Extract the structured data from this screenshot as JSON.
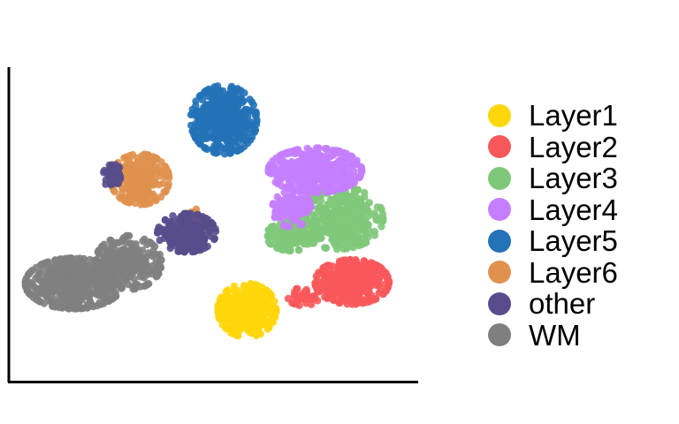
{
  "chart_data": {
    "type": "scatter",
    "title": "",
    "xlabel": "",
    "ylabel": "",
    "axes": "left and bottom lines only, no ticks or tick labels",
    "grid": false,
    "legend_position": "right",
    "series": [
      {
        "name": "Layer1",
        "color": "#FFD60A",
        "clusters": [
          {
            "cx": 0.585,
            "cy": 0.21,
            "rx": 0.075,
            "ry": 0.09,
            "n": 360
          }
        ]
      },
      {
        "name": "Layer2",
        "color": "#F8585A",
        "clusters": [
          {
            "cx": 0.855,
            "cy": 0.305,
            "rx": 0.095,
            "ry": 0.075,
            "n": 380
          },
          {
            "cx": 0.73,
            "cy": 0.255,
            "rx": 0.04,
            "ry": 0.03,
            "n": 40
          }
        ]
      },
      {
        "name": "Layer3",
        "color": "#7FC87A",
        "clusters": [
          {
            "cx": 0.82,
            "cy": 0.52,
            "rx": 0.115,
            "ry": 0.105,
            "n": 420
          },
          {
            "cx": 0.7,
            "cy": 0.46,
            "rx": 0.065,
            "ry": 0.05,
            "n": 160
          }
        ]
      },
      {
        "name": "Layer4",
        "color": "#C47EFF",
        "clusters": [
          {
            "cx": 0.76,
            "cy": 0.68,
            "rx": 0.12,
            "ry": 0.075,
            "n": 460
          },
          {
            "cx": 0.7,
            "cy": 0.55,
            "rx": 0.05,
            "ry": 0.06,
            "n": 120
          }
        ]
      },
      {
        "name": "Layer5",
        "color": "#2472B8",
        "clusters": [
          {
            "cx": 0.525,
            "cy": 0.85,
            "rx": 0.085,
            "ry": 0.115,
            "n": 440
          }
        ]
      },
      {
        "name": "Layer6",
        "color": "#E0914E",
        "clusters": [
          {
            "cx": 0.31,
            "cy": 0.65,
            "rx": 0.075,
            "ry": 0.085,
            "n": 260
          },
          {
            "cx": 0.45,
            "cy": 0.5,
            "rx": 0.04,
            "ry": 0.05,
            "n": 50
          }
        ]
      },
      {
        "name": "other",
        "color": "#584C8C",
        "clusters": [
          {
            "cx": 0.43,
            "cy": 0.47,
            "rx": 0.075,
            "ry": 0.065,
            "n": 220
          },
          {
            "cx": 0.24,
            "cy": 0.66,
            "rx": 0.025,
            "ry": 0.04,
            "n": 40
          }
        ]
      },
      {
        "name": "WM",
        "color": "#7F7F7F",
        "clusters": [
          {
            "cx": 0.14,
            "cy": 0.3,
            "rx": 0.125,
            "ry": 0.085,
            "n": 480
          },
          {
            "cx": 0.28,
            "cy": 0.37,
            "rx": 0.085,
            "ry": 0.09,
            "n": 260
          }
        ]
      }
    ]
  }
}
